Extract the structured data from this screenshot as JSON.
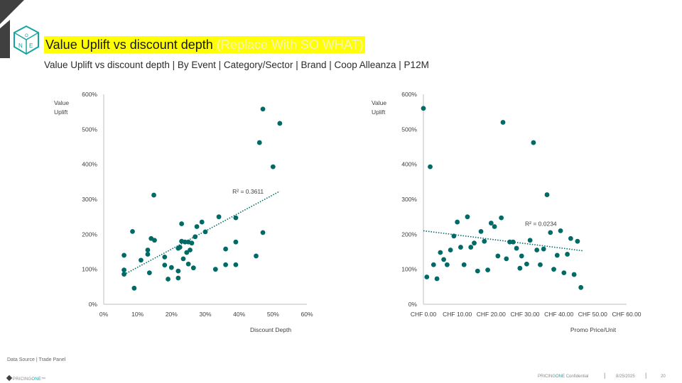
{
  "header": {
    "title": "Value Uplift vs discount depth",
    "title_note": "(Replace With SO WHAT)",
    "subtitle": "Value Uplift vs discount depth | By Event | Category/Sector | Brand | Coop Alleanza | P12M",
    "logo_letters": [
      "O",
      "N",
      "E"
    ]
  },
  "footer": {
    "source": "Data Source | Trade Panel",
    "brand_prefix": "PRICING",
    "brand_suffix": "ONE",
    "brand_mark": "™",
    "confidential_prefix": "PRICING",
    "confidential_brand": "ONE",
    "confidential_suffix": " Confidential",
    "separator": "|",
    "date": "8/25/2025",
    "page": "20"
  },
  "colors": {
    "marker": "#006b66",
    "trend": "#006b66",
    "highlight": "#ffff00",
    "logo": "#404040"
  },
  "chart_data": [
    {
      "type": "scatter",
      "ylabel": "Value Uplift",
      "xlabel": "Discount Depth",
      "xlim": [
        0,
        60
      ],
      "ylim": [
        0,
        600
      ],
      "xticks": [
        "0%",
        "10%",
        "20%",
        "30%",
        "40%",
        "50%",
        "60%"
      ],
      "yticks": [
        "0%",
        "100%",
        "200%",
        "300%",
        "400%",
        "500%",
        "600%"
      ],
      "trendline": {
        "style": "linear dotted",
        "r2": "R² = 0.3611",
        "from": [
          6,
          85
        ],
        "to": [
          52,
          323
        ]
      },
      "points": [
        [
          6,
          140
        ],
        [
          6,
          98
        ],
        [
          6,
          86
        ],
        [
          8.5,
          208
        ],
        [
          9,
          46
        ],
        [
          11,
          126
        ],
        [
          13,
          155
        ],
        [
          13,
          143
        ],
        [
          13.5,
          90
        ],
        [
          14,
          188
        ],
        [
          14.8,
          312
        ],
        [
          15,
          183
        ],
        [
          18,
          112
        ],
        [
          18,
          135
        ],
        [
          19,
          72
        ],
        [
          20,
          105
        ],
        [
          22,
          160
        ],
        [
          22,
          95
        ],
        [
          22,
          75
        ],
        [
          22.5,
          163
        ],
        [
          23,
          230
        ],
        [
          23,
          180
        ],
        [
          23.5,
          130
        ],
        [
          24,
          178
        ],
        [
          24.5,
          148
        ],
        [
          25,
          115
        ],
        [
          25,
          178
        ],
        [
          25.5,
          155
        ],
        [
          26,
          175
        ],
        [
          26.5,
          104
        ],
        [
          27,
          193
        ],
        [
          27.5,
          222
        ],
        [
          29,
          235
        ],
        [
          30,
          207
        ],
        [
          33,
          100
        ],
        [
          34,
          250
        ],
        [
          36,
          158
        ],
        [
          36,
          113
        ],
        [
          39,
          247
        ],
        [
          39,
          178
        ],
        [
          39,
          113
        ],
        [
          45,
          138
        ],
        [
          46,
          462
        ],
        [
          47,
          558
        ],
        [
          47,
          205
        ],
        [
          50,
          393
        ],
        [
          52,
          517
        ]
      ]
    },
    {
      "type": "scatter",
      "ylabel": "Value Uplift",
      "xlabel": "Promo Price/Unit",
      "xlim": [
        0,
        60
      ],
      "ylim": [
        0,
        600
      ],
      "xticks": [
        "CHF 0.00",
        "CHF 10.00",
        "CHF 20.00",
        "CHF 30.00",
        "CHF 40.00",
        "CHF 50.00",
        "CHF 60.00"
      ],
      "yticks": [
        "0%",
        "100%",
        "200%",
        "300%",
        "400%",
        "500%",
        "600%"
      ],
      "trendline": {
        "style": "linear dotted",
        "r2": "R² = 0.0234",
        "from": [
          0,
          210
        ],
        "to": [
          47,
          153
        ]
      },
      "points": [
        [
          0,
          560
        ],
        [
          1,
          78
        ],
        [
          2,
          393
        ],
        [
          3,
          113
        ],
        [
          4,
          73
        ],
        [
          5,
          148
        ],
        [
          6,
          128
        ],
        [
          7,
          113
        ],
        [
          8,
          155
        ],
        [
          9,
          195
        ],
        [
          10,
          235
        ],
        [
          11,
          163
        ],
        [
          12,
          113
        ],
        [
          13,
          250
        ],
        [
          14,
          163
        ],
        [
          15,
          175
        ],
        [
          16,
          95
        ],
        [
          17,
          208
        ],
        [
          18,
          180
        ],
        [
          19,
          98
        ],
        [
          20,
          232
        ],
        [
          21,
          222
        ],
        [
          22,
          138
        ],
        [
          23,
          247
        ],
        [
          23.5,
          520
        ],
        [
          24.5,
          130
        ],
        [
          25.5,
          178
        ],
        [
          26.5,
          178
        ],
        [
          27.5,
          160
        ],
        [
          28.5,
          103
        ],
        [
          29,
          138
        ],
        [
          30.5,
          115
        ],
        [
          31.5,
          183
        ],
        [
          32.5,
          462
        ],
        [
          33.5,
          155
        ],
        [
          34.5,
          113
        ],
        [
          35.5,
          158
        ],
        [
          36.5,
          313
        ],
        [
          37.5,
          205
        ],
        [
          38.5,
          100
        ],
        [
          39.5,
          140
        ],
        [
          40.5,
          210
        ],
        [
          41.5,
          90
        ],
        [
          42.5,
          143
        ],
        [
          43.5,
          188
        ],
        [
          44.5,
          85
        ],
        [
          45.5,
          180
        ],
        [
          46.5,
          48
        ]
      ]
    }
  ]
}
